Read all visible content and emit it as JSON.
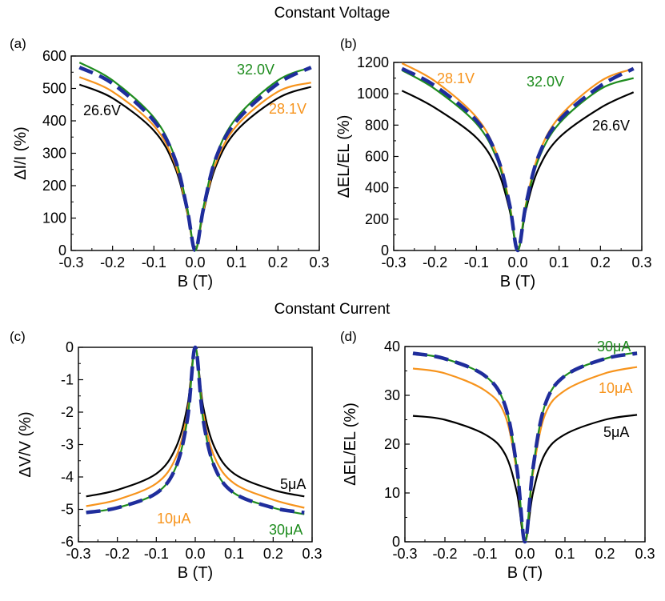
{
  "section_titles": [
    "Constant Voltage",
    "Constant Current"
  ],
  "colors": {
    "black": "#000000",
    "orange": "#f7941d",
    "green": "#1e8c1e",
    "fit": "#1f2d9c"
  },
  "chart_data": [
    {
      "panel": "(a)",
      "type": "line",
      "xlabel": "B (T)",
      "ylabel": "ΔI/I (%)",
      "xlim": [
        -0.3,
        0.3
      ],
      "ylim": [
        0,
        600
      ],
      "xticks": [
        "-0.3",
        "-0.2",
        "-0.1",
        "0.0",
        "0.1",
        "0.2",
        "0.3"
      ],
      "yticks": [
        "0",
        "100",
        "200",
        "300",
        "400",
        "500",
        "600"
      ],
      "x": [
        -0.28,
        -0.2,
        -0.1,
        -0.05,
        -0.02,
        0,
        0.02,
        0.05,
        0.1,
        0.2,
        0.28
      ],
      "series": [
        {
          "name": "26.6V",
          "color": "black",
          "values": [
            512,
            470,
            370,
            260,
            120,
            0,
            120,
            260,
            370,
            470,
            505
          ]
        },
        {
          "name": "28.1V",
          "color": "orange",
          "values": [
            535,
            490,
            385,
            270,
            125,
            0,
            125,
            270,
            385,
            490,
            518
          ]
        },
        {
          "name": "32.0V",
          "color": "green",
          "values": [
            580,
            525,
            410,
            290,
            135,
            0,
            135,
            290,
            410,
            525,
            565
          ]
        },
        {
          "name": "fit",
          "color": "fit",
          "dashed": true,
          "values": [
            565,
            515,
            400,
            285,
            130,
            0,
            130,
            285,
            400,
            515,
            565
          ]
        }
      ]
    },
    {
      "panel": "(b)",
      "type": "line",
      "xlabel": "B (T)",
      "ylabel": "ΔEL/EL (%)",
      "xlim": [
        -0.3,
        0.3
      ],
      "ylim": [
        0,
        1200
      ],
      "xticks": [
        "-0.3",
        "-0.2",
        "-0.1",
        "0.0",
        "0.1",
        "0.2",
        "0.3"
      ],
      "yticks": [
        "0",
        "200",
        "400",
        "600",
        "800",
        "1000",
        "1200"
      ],
      "x": [
        -0.28,
        -0.2,
        -0.1,
        -0.05,
        -0.02,
        0,
        0.02,
        0.05,
        0.1,
        0.2,
        0.28
      ],
      "series": [
        {
          "name": "26.6V",
          "color": "black",
          "values": [
            1020,
            910,
            720,
            520,
            260,
            0,
            260,
            520,
            720,
            910,
            1010
          ]
        },
        {
          "name": "28.1V",
          "color": "orange",
          "values": [
            1195,
            1080,
            850,
            610,
            300,
            0,
            300,
            610,
            850,
            1080,
            1160
          ]
        },
        {
          "name": "32.0V",
          "color": "green",
          "values": [
            1150,
            1030,
            810,
            580,
            285,
            0,
            285,
            580,
            810,
            1030,
            1100
          ]
        },
        {
          "name": "fit",
          "color": "fit",
          "dashed": true,
          "values": [
            1160,
            1050,
            830,
            600,
            295,
            0,
            295,
            600,
            830,
            1050,
            1160
          ]
        }
      ]
    },
    {
      "panel": "(c)",
      "type": "line",
      "xlabel": "B (T)",
      "ylabel": "ΔV/V (%)",
      "xlim": [
        -0.3,
        0.3
      ],
      "ylim": [
        -6,
        0
      ],
      "xticks": [
        "-0.3",
        "-0.2",
        "-0.1",
        "0.0",
        "0.1",
        "0.2",
        "0.3"
      ],
      "yticks": [
        "-6",
        "-5",
        "-4",
        "-3",
        "-2",
        "-1",
        "0"
      ],
      "x": [
        -0.28,
        -0.2,
        -0.1,
        -0.05,
        -0.02,
        0,
        0.02,
        0.05,
        0.1,
        0.2,
        0.28
      ],
      "series": [
        {
          "name": "5μA",
          "color": "black",
          "values": [
            -4.6,
            -4.4,
            -3.9,
            -3.1,
            -1.8,
            0,
            -1.8,
            -3.1,
            -3.9,
            -4.4,
            -4.6
          ]
        },
        {
          "name": "10μA",
          "color": "orange",
          "values": [
            -4.9,
            -4.7,
            -4.2,
            -3.4,
            -2.0,
            0,
            -2.0,
            -3.4,
            -4.2,
            -4.7,
            -4.95
          ]
        },
        {
          "name": "30μA",
          "color": "green",
          "values": [
            -5.1,
            -4.95,
            -4.5,
            -3.7,
            -2.2,
            0,
            -2.2,
            -3.7,
            -4.5,
            -4.95,
            -5.15
          ]
        },
        {
          "name": "fit",
          "color": "fit",
          "dashed": true,
          "values": [
            -5.1,
            -4.95,
            -4.5,
            -3.7,
            -2.2,
            0,
            -2.2,
            -3.7,
            -4.5,
            -4.95,
            -5.1
          ]
        }
      ]
    },
    {
      "panel": "(d)",
      "type": "line",
      "xlabel": "B (T)",
      "ylabel": "ΔEL/EL (%)",
      "xlim": [
        -0.3,
        0.3
      ],
      "ylim": [
        0,
        40
      ],
      "xticks": [
        "-0.3",
        "-0.2",
        "-0.1",
        "0.0",
        "0.1",
        "0.2",
        "0.3"
      ],
      "yticks": [
        "0",
        "10",
        "20",
        "30",
        "40"
      ],
      "x": [
        -0.28,
        -0.2,
        -0.1,
        -0.05,
        -0.02,
        0,
        0.02,
        0.05,
        0.1,
        0.2,
        0.28
      ],
      "series": [
        {
          "name": "5μA",
          "color": "black",
          "values": [
            25.8,
            25,
            22,
            18,
            10,
            0,
            10,
            18,
            22,
            25,
            26
          ]
        },
        {
          "name": "10μA",
          "color": "orange",
          "values": [
            35.5,
            34.5,
            31,
            26,
            14,
            0,
            14,
            26,
            31,
            34.5,
            35.8
          ]
        },
        {
          "name": "30μA",
          "color": "green",
          "values": [
            38.6,
            37.5,
            34,
            28,
            15,
            0,
            15,
            28,
            34,
            37.5,
            38.8
          ]
        },
        {
          "name": "fit",
          "color": "fit",
          "dashed": true,
          "values": [
            38.6,
            37.5,
            34,
            28,
            15,
            0,
            15,
            28,
            34,
            37.5,
            38.6
          ]
        }
      ]
    }
  ]
}
